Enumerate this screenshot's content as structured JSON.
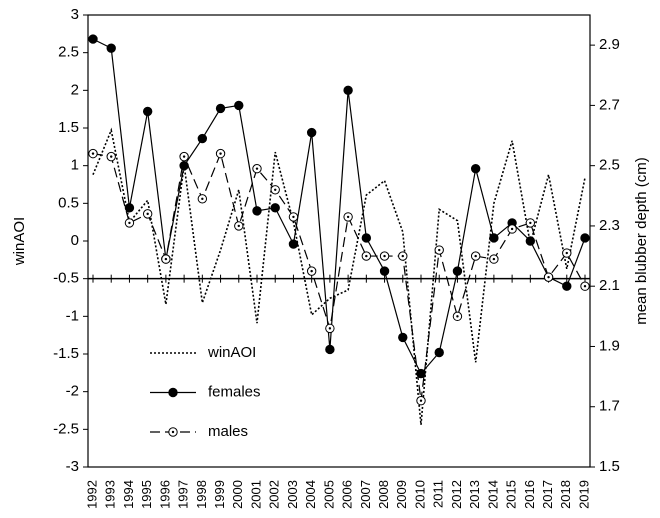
{
  "chart_data": {
    "type": "line",
    "categories": [
      "1992",
      "1993",
      "1994",
      "1995",
      "1996",
      "1997",
      "1998",
      "1999",
      "2000",
      "2001",
      "2002",
      "2003",
      "2004",
      "2005",
      "2006",
      "2007",
      "2008",
      "2009",
      "2010",
      "2011",
      "2012",
      "2013",
      "2014",
      "2015",
      "2016",
      "2017",
      "2018",
      "2019"
    ],
    "y_label": "winAOI",
    "y2_label": "mean blubber depth (cm)",
    "ylim": [
      -3,
      3
    ],
    "yticks": [
      -3,
      -2.5,
      -2,
      -1.5,
      -1,
      -0.5,
      0,
      0.5,
      1,
      1.5,
      2,
      2.5,
      3
    ],
    "y2lim": [
      1.5,
      3.0
    ],
    "y2ticks": [
      1.5,
      1.7,
      1.9,
      2.1,
      2.3,
      2.5,
      2.7,
      2.9
    ],
    "x_axis_at": -0.5,
    "legend": "left",
    "series": [
      {
        "name": "winAOI",
        "color": "#000000",
        "dash": "dotted",
        "marker": "none",
        "values": [
          0.88,
          1.47,
          0.25,
          0.54,
          -0.84,
          1.01,
          -0.82,
          -0.12,
          0.68,
          -1.09,
          1.18,
          0.25,
          -0.98,
          -0.76,
          -0.65,
          0.61,
          0.8,
          0.12,
          -2.44,
          0.42,
          0.27,
          -1.61,
          0.5,
          1.33,
          -0.04,
          0.88,
          -0.37,
          0.84
        ]
      },
      {
        "name": "females",
        "color": "#000000",
        "dash": "solid",
        "marker": "filled",
        "axis": "y2",
        "values": [
          2.92,
          2.89,
          2.36,
          2.68,
          2.19,
          2.5,
          2.59,
          2.69,
          2.7,
          2.35,
          2.36,
          2.24,
          2.61,
          1.89,
          2.75,
          2.26,
          2.15,
          1.93,
          1.81,
          1.88,
          2.15,
          2.49,
          2.26,
          2.31,
          2.25,
          2.13,
          2.1,
          2.26
        ]
      },
      {
        "name": "males",
        "color": "#000000",
        "dash": "dashed",
        "marker": "open",
        "axis": "y2",
        "values": [
          2.54,
          2.53,
          2.31,
          2.34,
          2.19,
          2.53,
          2.39,
          2.54,
          2.3,
          2.49,
          2.42,
          2.33,
          2.15,
          1.96,
          2.33,
          2.2,
          2.2,
          2.2,
          1.72,
          2.22,
          2.0,
          2.2,
          2.19,
          2.29,
          2.31,
          2.13,
          2.21,
          2.1
        ]
      }
    ]
  }
}
